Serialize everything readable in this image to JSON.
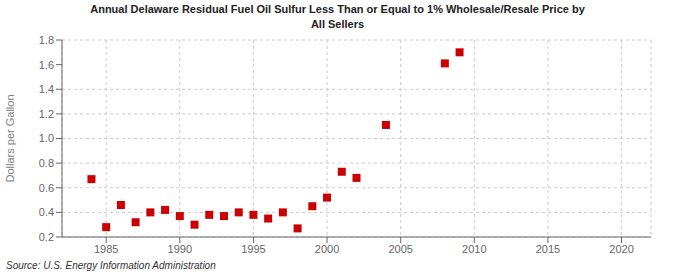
{
  "chart_data": {
    "type": "scatter",
    "title": "Annual Delaware Residual Fuel Oil Sulfur Less Than or Equal to 1% Wholesale/Resale Price by\nAll Sellers",
    "ylabel": "Dollars per Gallon",
    "source": "Source: U.S. Energy Information Administration",
    "color": "#cc0000",
    "marker": "square",
    "grid": true,
    "xlim": [
      1982,
      2022
    ],
    "ylim": [
      0.2,
      1.8
    ],
    "xticks": [
      1985,
      1990,
      1995,
      2000,
      2005,
      2010,
      2015,
      2020
    ],
    "yticks": [
      0.2,
      0.4,
      0.6,
      0.8,
      {
        "value": 1.0,
        "label": "1.0"
      },
      1.2,
      1.4,
      1.6,
      1.8
    ],
    "x": [
      1984,
      1985,
      1986,
      1987,
      1988,
      1989,
      1990,
      1991,
      1992,
      1993,
      1994,
      1995,
      1996,
      1997,
      1998,
      1999,
      2000,
      2001,
      2002,
      2004,
      2008,
      2009
    ],
    "values": [
      0.67,
      0.28,
      0.46,
      0.32,
      0.4,
      0.42,
      0.37,
      0.3,
      0.38,
      0.37,
      0.4,
      0.38,
      0.35,
      0.4,
      0.27,
      0.45,
      0.52,
      0.73,
      0.68,
      1.11,
      1.61,
      1.7
    ]
  }
}
